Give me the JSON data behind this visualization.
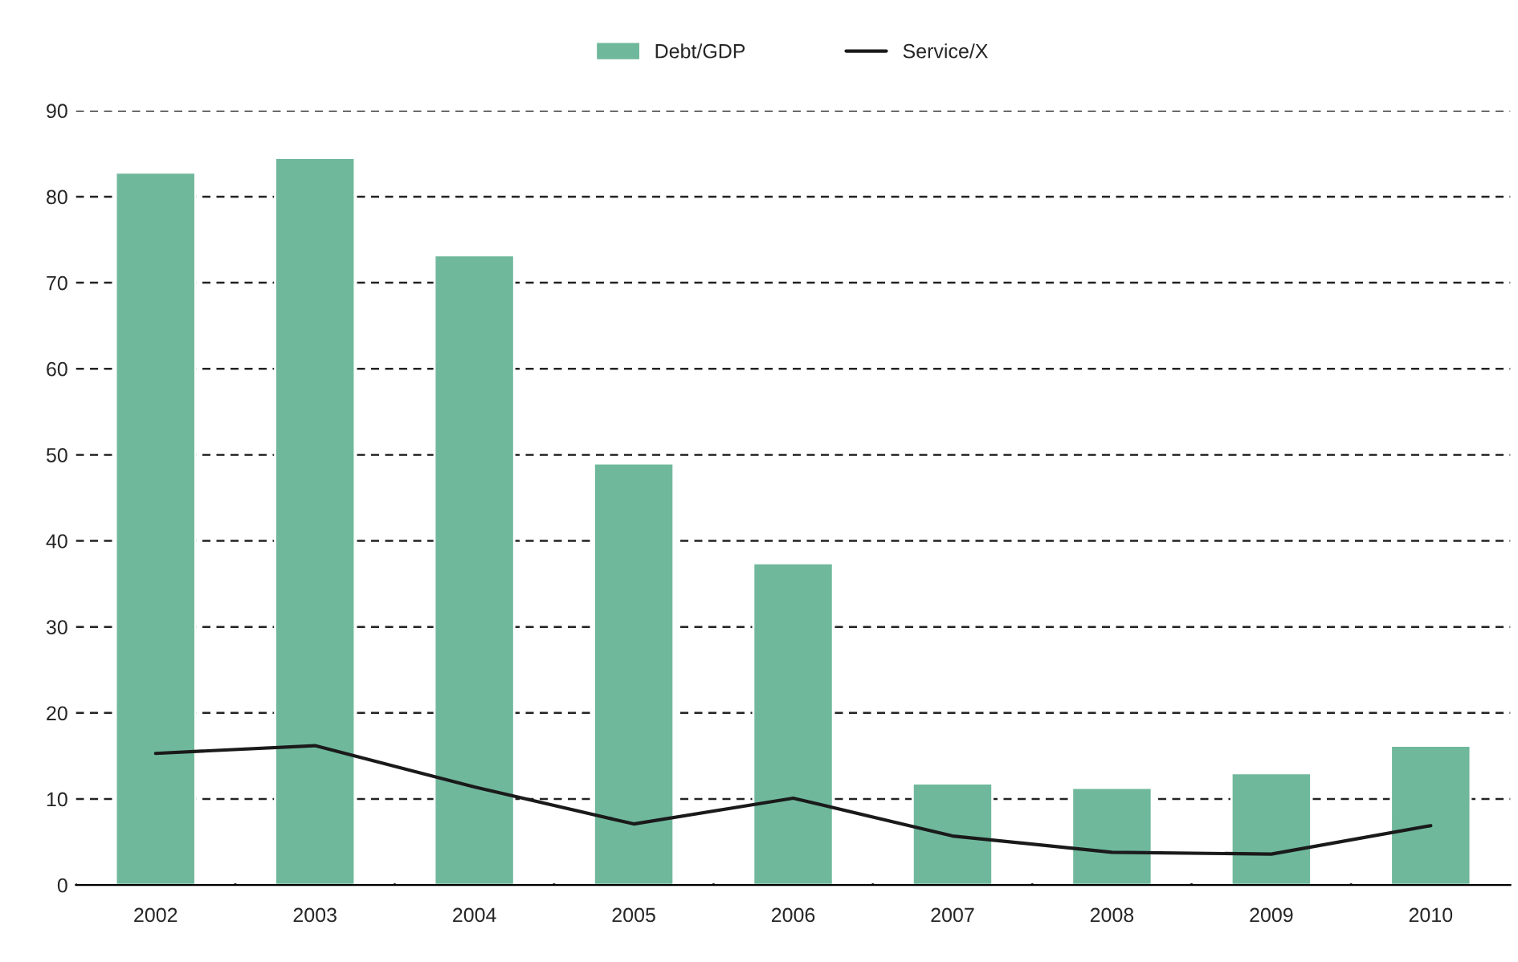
{
  "chart_data": {
    "type": "bar",
    "categories": [
      "2002",
      "2003",
      "2004",
      "2005",
      "2006",
      "2007",
      "2008",
      "2009",
      "2010"
    ],
    "series": [
      {
        "name": "Debt/GDP",
        "color": "#6fb89c",
        "values": [
          82.8,
          84.5,
          73.2,
          49.0,
          37.4,
          11.8,
          11.3,
          13.0,
          16.2
        ]
      },
      {
        "name": "Service/X",
        "type": "line",
        "color": "#1a1a1a",
        "values": [
          15.3,
          16.2,
          11.4,
          7.1,
          10.1,
          5.7,
          3.8,
          3.6,
          6.9
        ]
      }
    ],
    "ylim": [
      0,
      90
    ],
    "yticks": [
      0,
      10,
      20,
      30,
      40,
      50,
      60,
      70,
      80,
      90
    ],
    "grid": "y",
    "legend": "top"
  }
}
